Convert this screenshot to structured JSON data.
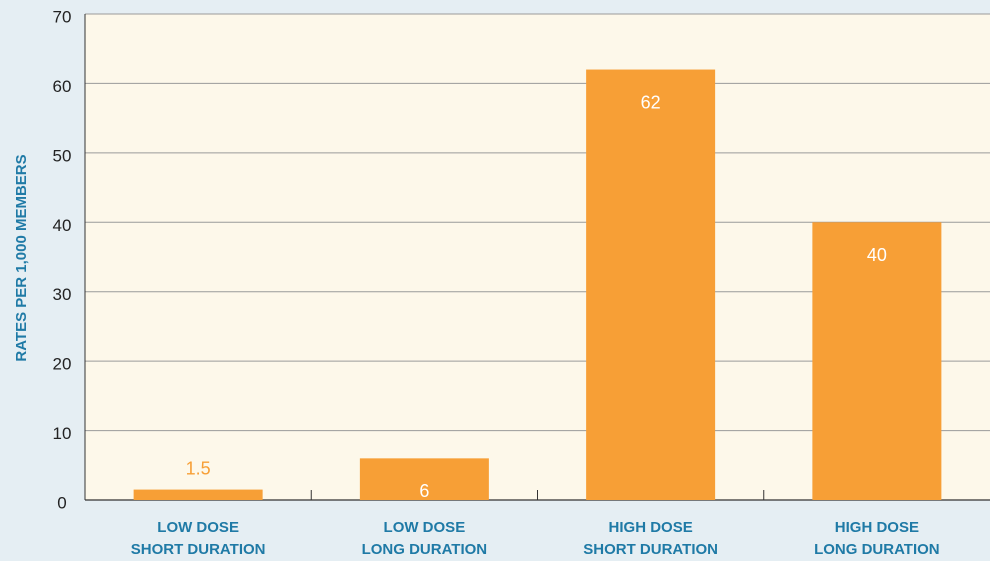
{
  "chart_data": {
    "type": "bar",
    "y_label": "RATES PER 1,000 MEMBERS",
    "categories": [
      [
        "LOW DOSE",
        "SHORT DURATION"
      ],
      [
        "LOW DOSE",
        "LONG DURATION"
      ],
      [
        "HIGH DOSE",
        "SHORT DURATION"
      ],
      [
        "HIGH DOSE",
        "LONG DURATION"
      ]
    ],
    "values": [
      1.5,
      6,
      62,
      40
    ],
    "color": "#f79f36",
    "ylim": [
      0,
      70
    ],
    "yticks": [
      0,
      10,
      20,
      30,
      40,
      50,
      60,
      70
    ],
    "grid": true
  }
}
